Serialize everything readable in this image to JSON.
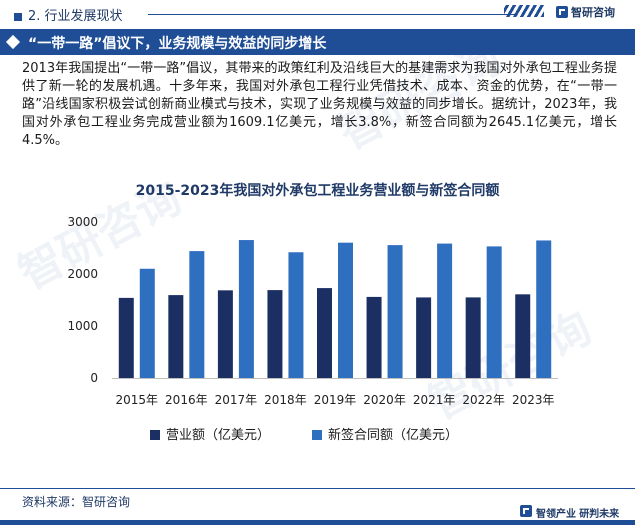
{
  "section": {
    "label": "2. 行业发展现状"
  },
  "brand": {
    "name": "智研咨询"
  },
  "title_bar": {
    "title": "“一带一路”倡议下，业务规模与效益的同步增长"
  },
  "body": {
    "paragraph": "2013年我国提出“一带一路”倡议，其带来的政策红利及沿线巨大的基建需求为我国对外承包工程业务提供了新一轮的发展机遇。十多年来，我国对外承包工程行业凭借技术、成本、资金的优势，在“一带一路”沿线国家积极尝试创新商业模式与技术，实现了业务规模与效益的同步增长。据统计，2023年，我国对外承包工程业务完成营业额为1609.1亿美元，增长3.8%，新签合同额为2645.1亿美元，增长4.5%。"
  },
  "chart_data": {
    "type": "bar",
    "title": "2015-2023年我国对外承包工程业务营业额与新签合同额",
    "categories": [
      "2015年",
      "2016年",
      "2017年",
      "2018年",
      "2019年",
      "2020年",
      "2021年",
      "2022年",
      "2023年"
    ],
    "series": [
      {
        "name": "营业额（亿美元）",
        "color": "#1c2f63",
        "values": [
          1540.7,
          1594.2,
          1685.9,
          1690.4,
          1729.0,
          1559.4,
          1549.4,
          1549.9,
          1609.1
        ]
      },
      {
        "name": "新签合同额（亿美元）",
        "color": "#2f6fc0",
        "values": [
          2100.7,
          2440.1,
          2652.8,
          2418.0,
          2602.5,
          2555.4,
          2584.9,
          2530.7,
          2645.1
        ]
      }
    ],
    "yticks": [
      "0",
      "1000",
      "2000",
      "3000"
    ],
    "ylim": [
      0,
      3000
    ],
    "grid": false,
    "legend": "bottom"
  },
  "footer": {
    "source": "资料来源：智研咨询",
    "slogan_a": "智领产业",
    "slogan_b": "研判未来"
  },
  "watermark": {
    "text": "智研咨询"
  }
}
